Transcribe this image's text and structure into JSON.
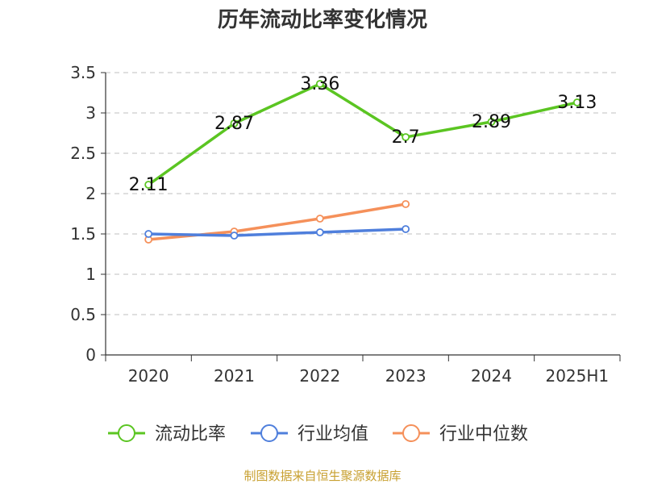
{
  "chart_data": {
    "type": "line",
    "title": "历年流动比率变化情况",
    "categories": [
      "2020",
      "2021",
      "2022",
      "2023",
      "2024",
      "2025H1"
    ],
    "ylim": [
      0,
      3.5
    ],
    "yticks": [
      "0",
      "0.5",
      "1",
      "1.5",
      "2",
      "2.5",
      "3",
      "3.5"
    ],
    "grid": true,
    "legend_position": "bottom",
    "series": [
      {
        "name": "流动比率",
        "color": "#5bc522",
        "values": [
          2.11,
          2.87,
          3.36,
          2.7,
          2.89,
          3.13
        ],
        "labels": [
          "2.11",
          "2.87",
          "3.36",
          "2.7",
          "2.89",
          "3.13"
        ]
      },
      {
        "name": "行业均值",
        "color": "#4f7fdc",
        "values": [
          1.5,
          1.48,
          1.52,
          1.56,
          null,
          null
        ]
      },
      {
        "name": "行业中位数",
        "color": "#f5905a",
        "values": [
          1.43,
          1.53,
          1.69,
          1.87,
          null,
          null
        ]
      }
    ],
    "source": "制图数据来自恒生聚源数据库"
  }
}
